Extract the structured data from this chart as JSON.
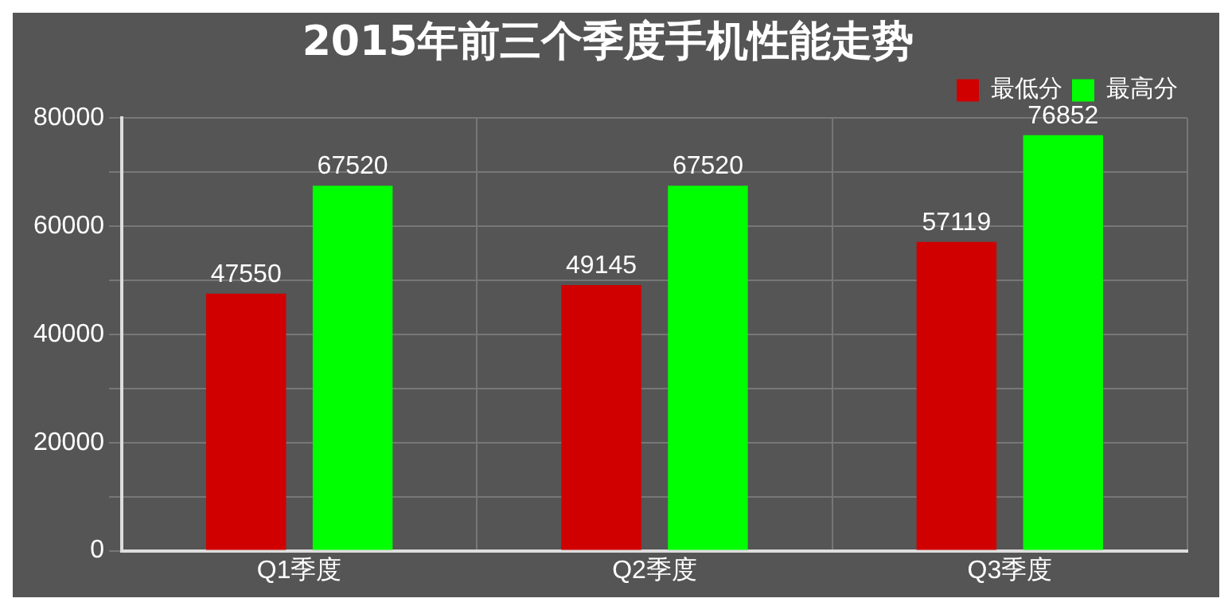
{
  "chart_data": {
    "type": "bar",
    "title": "2015年前三个季度手机性能走势",
    "categories": [
      "Q1季度",
      "Q2季度",
      "Q3季度"
    ],
    "series": [
      {
        "name": "最低分",
        "color": "#d00000",
        "values": [
          47550,
          49145,
          57119
        ]
      },
      {
        "name": "最高分",
        "color": "#00ff00",
        "values": [
          67520,
          67520,
          76852
        ]
      }
    ],
    "ylim": [
      0,
      80000
    ],
    "yticks": [
      0,
      {
        "value": 10000,
        "label": null
      },
      20000,
      {
        "value": 30000,
        "label": null
      },
      40000,
      {
        "value": 50000,
        "label": null
      },
      60000,
      {
        "value": 70000,
        "label": null
      },
      80000
    ],
    "grid": true,
    "legend": "top right",
    "data_labels": true
  }
}
